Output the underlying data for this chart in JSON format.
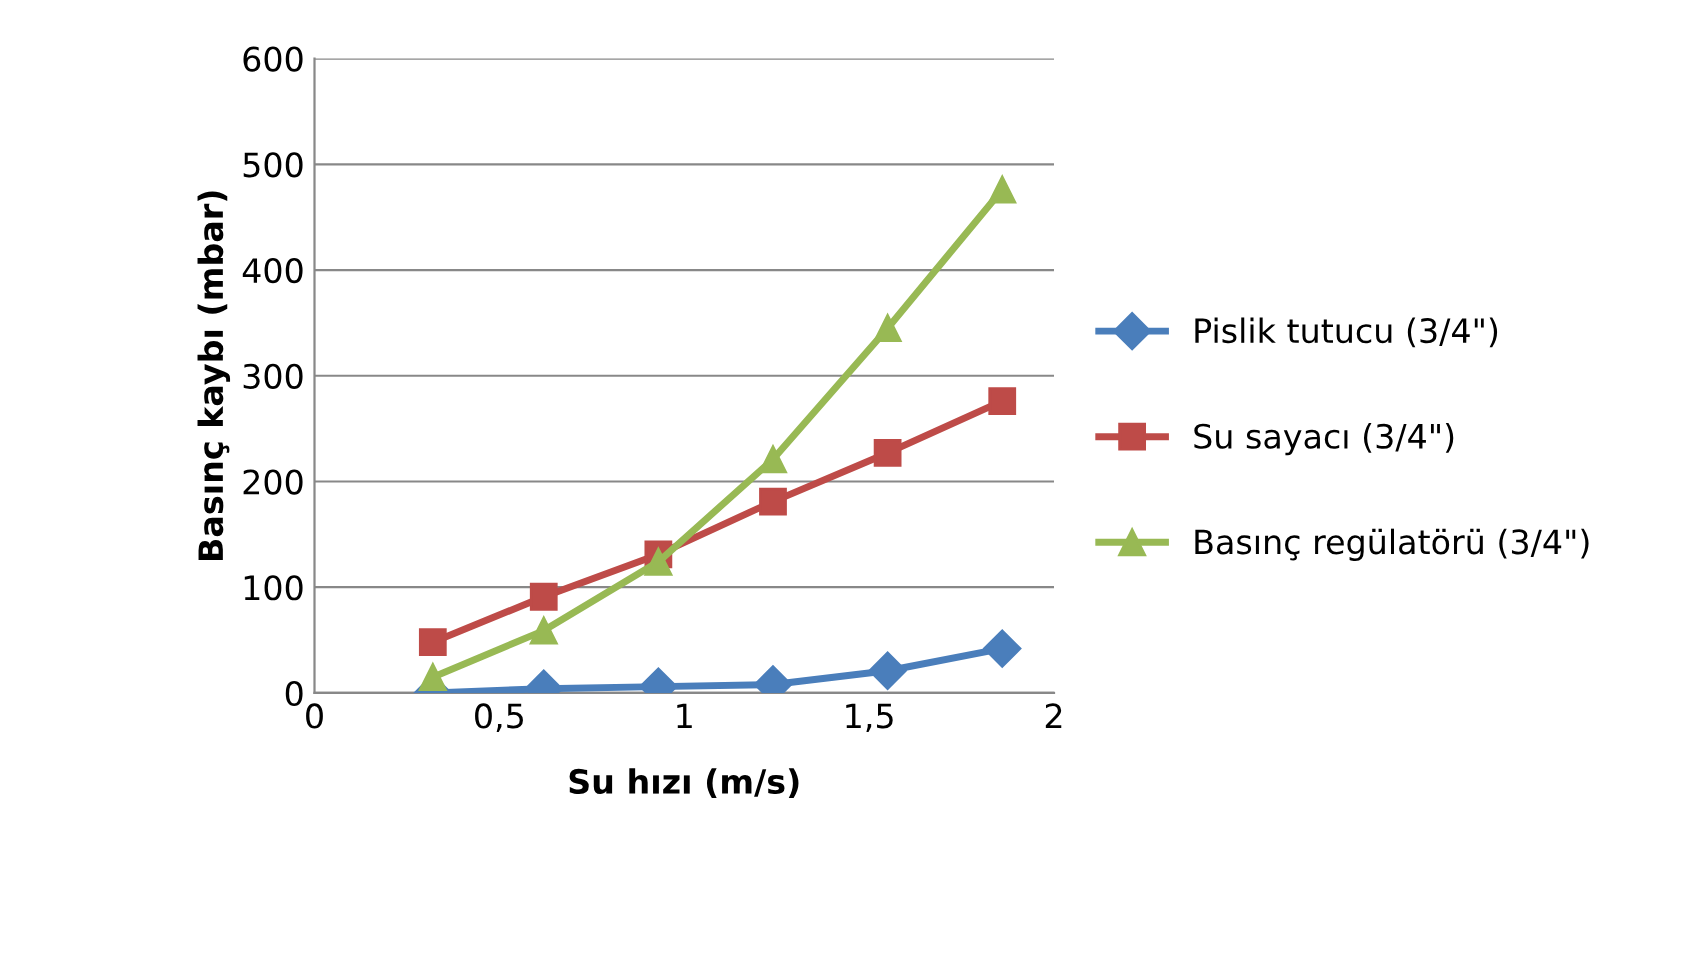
{
  "chart_data": {
    "type": "line",
    "xlabel": "Su hızı (m/s)",
    "ylabel": "Basınç kaybı (mbar)",
    "x": [
      0.32,
      0.62,
      0.93,
      1.24,
      1.55,
      1.86
    ],
    "series": [
      {
        "name": "Pislik tutucu (3/4\")",
        "color": "#4a7ebb",
        "marker": "diamond",
        "values": [
          0,
          4,
          6,
          8,
          21,
          42
        ]
      },
      {
        "name": "Su sayacı (3/4\")",
        "color": "#be4b48",
        "marker": "square",
        "values": [
          48,
          91,
          131,
          181,
          227,
          276
        ]
      },
      {
        "name": "Basınç regülatörü (3/4\")",
        "color": "#98b954",
        "marker": "triangle",
        "values": [
          15,
          59,
          124,
          221,
          345,
          476
        ]
      }
    ],
    "xlim": [
      0,
      2
    ],
    "xticks": [
      0,
      {
        "value": 0.5,
        "label": "0,5"
      },
      1,
      {
        "value": 1.5,
        "label": "1,5"
      },
      2
    ],
    "ylim": [
      0,
      600
    ],
    "yticks": [
      0,
      100,
      200,
      300,
      400,
      500,
      600
    ],
    "grid": "y",
    "legend": "right"
  }
}
